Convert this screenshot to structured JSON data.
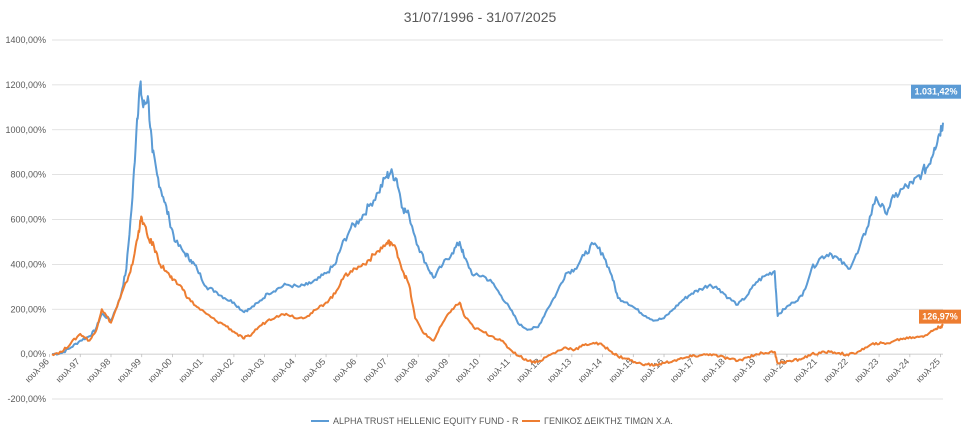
{
  "chart_data": {
    "type": "line",
    "title": "31/07/1996 - 31/07/2025",
    "xlabel": "",
    "ylabel": "",
    "ylim": [
      -200,
      1400
    ],
    "yticks": [
      -200,
      0,
      200,
      400,
      600,
      800,
      1000,
      1200,
      1400
    ],
    "ytick_labels": [
      "-200,00%",
      "0,00%",
      "200,00%",
      "400,00%",
      "600,00%",
      "800,00%",
      "1000,00%",
      "1200,00%",
      "1400,00%"
    ],
    "xlim": [
      1996.58,
      2025.58
    ],
    "xticks": [
      1996.5,
      1997.5,
      1998.5,
      1999.5,
      2000.5,
      2001.5,
      2002.5,
      2003.5,
      2004.5,
      2005.5,
      2006.5,
      2007.5,
      2008.5,
      2009.5,
      2010.5,
      2011.5,
      2012.5,
      2013.5,
      2014.5,
      2015.5,
      2016.5,
      2017.5,
      2018.5,
      2019.5,
      2020.5,
      2021.5,
      2022.5,
      2023.5,
      2024.5,
      2025.5
    ],
    "xtick_labels": [
      "ιουλ-96",
      "ιουλ-97",
      "ιουλ-98",
      "ιουλ-99",
      "ιουλ-00",
      "ιουλ-01",
      "ιουλ-02",
      "ιουλ-03",
      "ιουλ-04",
      "ιουλ-05",
      "ιουλ-06",
      "ιουλ-07",
      "ιουλ-08",
      "ιουλ-09",
      "ιουλ-10",
      "ιουλ-11",
      "ιουλ-12",
      "ιουλ-13",
      "ιουλ-14",
      "ιουλ-15",
      "ιουλ-16",
      "ιουλ-17",
      "ιουλ-18",
      "ιουλ-19",
      "ιουλ-20",
      "ιουλ-21",
      "ιουλ-22",
      "ιουλ-23",
      "ιουλ-24",
      "ιουλ-25"
    ],
    "grid": true,
    "legend_position": "bottom",
    "series": [
      {
        "name": "ALPHA TRUST HELLENIC EQUITY FUND - R",
        "color": "#5B9BD5",
        "end_label": "1.031,42%",
        "points": [
          [
            1996.58,
            0
          ],
          [
            1996.9,
            5
          ],
          [
            1997.2,
            30
          ],
          [
            1997.5,
            60
          ],
          [
            1997.8,
            80
          ],
          [
            1998.0,
            110
          ],
          [
            1998.2,
            180
          ],
          [
            1998.5,
            150
          ],
          [
            1998.8,
            250
          ],
          [
            1999.0,
            380
          ],
          [
            1999.2,
            700
          ],
          [
            1999.35,
            1050
          ],
          [
            1999.45,
            1200
          ],
          [
            1999.55,
            1100
          ],
          [
            1999.7,
            1150
          ],
          [
            1999.85,
            900
          ],
          [
            2000.0,
            800
          ],
          [
            2000.2,
            700
          ],
          [
            2000.4,
            600
          ],
          [
            2000.6,
            500
          ],
          [
            2000.9,
            450
          ],
          [
            2001.1,
            420
          ],
          [
            2001.3,
            380
          ],
          [
            2001.6,
            300
          ],
          [
            2001.9,
            280
          ],
          [
            2002.2,
            250
          ],
          [
            2002.5,
            230
          ],
          [
            2002.8,
            190
          ],
          [
            2003.0,
            200
          ],
          [
            2003.3,
            230
          ],
          [
            2003.6,
            270
          ],
          [
            2003.9,
            290
          ],
          [
            2004.2,
            310
          ],
          [
            2004.6,
            300
          ],
          [
            2004.9,
            310
          ],
          [
            2005.2,
            330
          ],
          [
            2005.5,
            360
          ],
          [
            2005.8,
            400
          ],
          [
            2006.0,
            480
          ],
          [
            2006.3,
            560
          ],
          [
            2006.6,
            600
          ],
          [
            2006.9,
            660
          ],
          [
            2007.2,
            720
          ],
          [
            2007.45,
            790
          ],
          [
            2007.6,
            810
          ],
          [
            2007.8,
            780
          ],
          [
            2008.0,
            650
          ],
          [
            2008.2,
            620
          ],
          [
            2008.5,
            480
          ],
          [
            2008.8,
            390
          ],
          [
            2009.0,
            340
          ],
          [
            2009.3,
            400
          ],
          [
            2009.6,
            450
          ],
          [
            2009.85,
            500
          ],
          [
            2010.0,
            430
          ],
          [
            2010.3,
            350
          ],
          [
            2010.6,
            350
          ],
          [
            2010.9,
            320
          ],
          [
            2011.2,
            260
          ],
          [
            2011.5,
            200
          ],
          [
            2011.8,
            130
          ],
          [
            2012.1,
            110
          ],
          [
            2012.4,
            120
          ],
          [
            2012.7,
            200
          ],
          [
            2013.0,
            270
          ],
          [
            2013.3,
            360
          ],
          [
            2013.6,
            380
          ],
          [
            2013.9,
            440
          ],
          [
            2014.2,
            490
          ],
          [
            2014.5,
            450
          ],
          [
            2014.8,
            350
          ],
          [
            2015.0,
            250
          ],
          [
            2015.3,
            230
          ],
          [
            2015.6,
            200
          ],
          [
            2015.9,
            170
          ],
          [
            2016.2,
            150
          ],
          [
            2016.5,
            160
          ],
          [
            2016.8,
            200
          ],
          [
            2017.1,
            240
          ],
          [
            2017.4,
            270
          ],
          [
            2017.7,
            290
          ],
          [
            2018.0,
            310
          ],
          [
            2018.3,
            290
          ],
          [
            2018.6,
            250
          ],
          [
            2018.9,
            220
          ],
          [
            2019.2,
            260
          ],
          [
            2019.5,
            320
          ],
          [
            2019.8,
            350
          ],
          [
            2020.1,
            370
          ],
          [
            2020.2,
            170
          ],
          [
            2020.4,
            200
          ],
          [
            2020.7,
            230
          ],
          [
            2021.0,
            260
          ],
          [
            2021.3,
            380
          ],
          [
            2021.6,
            430
          ],
          [
            2021.9,
            450
          ],
          [
            2022.2,
            420
          ],
          [
            2022.5,
            380
          ],
          [
            2022.8,
            450
          ],
          [
            2023.1,
            560
          ],
          [
            2023.4,
            700
          ],
          [
            2023.7,
            630
          ],
          [
            2024.0,
            700
          ],
          [
            2024.3,
            740
          ],
          [
            2024.6,
            760
          ],
          [
            2024.9,
            810
          ],
          [
            2025.1,
            840
          ],
          [
            2025.3,
            920
          ],
          [
            2025.45,
            980
          ],
          [
            2025.58,
            1031.42
          ]
        ]
      },
      {
        "name": "ΓΕΝΙΚΟΣ ΔΕΙΚΤΗΣ ΤΙΜΩΝ Χ.Α.",
        "color": "#ED7D31",
        "end_label": "126,97%",
        "points": [
          [
            1996.58,
            0
          ],
          [
            1996.9,
            10
          ],
          [
            1997.2,
            50
          ],
          [
            1997.5,
            90
          ],
          [
            1997.8,
            60
          ],
          [
            1998.0,
            100
          ],
          [
            1998.2,
            200
          ],
          [
            1998.5,
            140
          ],
          [
            1998.8,
            250
          ],
          [
            1999.0,
            320
          ],
          [
            1999.2,
            400
          ],
          [
            1999.4,
            550
          ],
          [
            1999.5,
            610
          ],
          [
            1999.7,
            520
          ],
          [
            1999.9,
            480
          ],
          [
            2000.1,
            400
          ],
          [
            2000.3,
            370
          ],
          [
            2000.5,
            330
          ],
          [
            2000.8,
            300
          ],
          [
            2001.0,
            250
          ],
          [
            2001.3,
            210
          ],
          [
            2001.6,
            180
          ],
          [
            2001.9,
            150
          ],
          [
            2002.2,
            130
          ],
          [
            2002.5,
            100
          ],
          [
            2002.8,
            70
          ],
          [
            2003.0,
            80
          ],
          [
            2003.3,
            120
          ],
          [
            2003.6,
            150
          ],
          [
            2003.9,
            170
          ],
          [
            2004.2,
            180
          ],
          [
            2004.6,
            160
          ],
          [
            2004.9,
            170
          ],
          [
            2005.2,
            200
          ],
          [
            2005.5,
            230
          ],
          [
            2005.8,
            270
          ],
          [
            2006.0,
            330
          ],
          [
            2006.3,
            370
          ],
          [
            2006.6,
            390
          ],
          [
            2006.9,
            420
          ],
          [
            2007.2,
            460
          ],
          [
            2007.45,
            490
          ],
          [
            2007.6,
            500
          ],
          [
            2007.8,
            460
          ],
          [
            2008.0,
            370
          ],
          [
            2008.2,
            310
          ],
          [
            2008.4,
            160
          ],
          [
            2008.7,
            90
          ],
          [
            2009.0,
            60
          ],
          [
            2009.3,
            140
          ],
          [
            2009.6,
            200
          ],
          [
            2009.85,
            230
          ],
          [
            2010.0,
            170
          ],
          [
            2010.3,
            120
          ],
          [
            2010.6,
            100
          ],
          [
            2010.9,
            80
          ],
          [
            2011.2,
            60
          ],
          [
            2011.5,
            20
          ],
          [
            2011.8,
            -10
          ],
          [
            2012.1,
            -30
          ],
          [
            2012.4,
            -35
          ],
          [
            2012.7,
            -10
          ],
          [
            2013.0,
            10
          ],
          [
            2013.3,
            30
          ],
          [
            2013.6,
            20
          ],
          [
            2013.9,
            40
          ],
          [
            2014.2,
            50
          ],
          [
            2014.5,
            40
          ],
          [
            2014.8,
            10
          ],
          [
            2015.0,
            -10
          ],
          [
            2015.3,
            -20
          ],
          [
            2015.6,
            -40
          ],
          [
            2015.9,
            -45
          ],
          [
            2016.2,
            -50
          ],
          [
            2016.5,
            -40
          ],
          [
            2016.8,
            -30
          ],
          [
            2017.1,
            -20
          ],
          [
            2017.4,
            -10
          ],
          [
            2017.7,
            -5
          ],
          [
            2018.0,
            0
          ],
          [
            2018.3,
            -10
          ],
          [
            2018.6,
            -20
          ],
          [
            2018.9,
            -30
          ],
          [
            2019.2,
            -15
          ],
          [
            2019.5,
            0
          ],
          [
            2019.8,
            5
          ],
          [
            2020.1,
            10
          ],
          [
            2020.2,
            -40
          ],
          [
            2020.4,
            -35
          ],
          [
            2020.7,
            -30
          ],
          [
            2021.0,
            -20
          ],
          [
            2021.3,
            0
          ],
          [
            2021.6,
            5
          ],
          [
            2021.9,
            10
          ],
          [
            2022.2,
            5
          ],
          [
            2022.5,
            -5
          ],
          [
            2022.8,
            10
          ],
          [
            2023.1,
            30
          ],
          [
            2023.4,
            50
          ],
          [
            2023.7,
            45
          ],
          [
            2024.0,
            60
          ],
          [
            2024.3,
            70
          ],
          [
            2024.6,
            75
          ],
          [
            2024.9,
            80
          ],
          [
            2025.1,
            90
          ],
          [
            2025.3,
            110
          ],
          [
            2025.45,
            120
          ],
          [
            2025.58,
            126.97
          ]
        ]
      }
    ]
  }
}
